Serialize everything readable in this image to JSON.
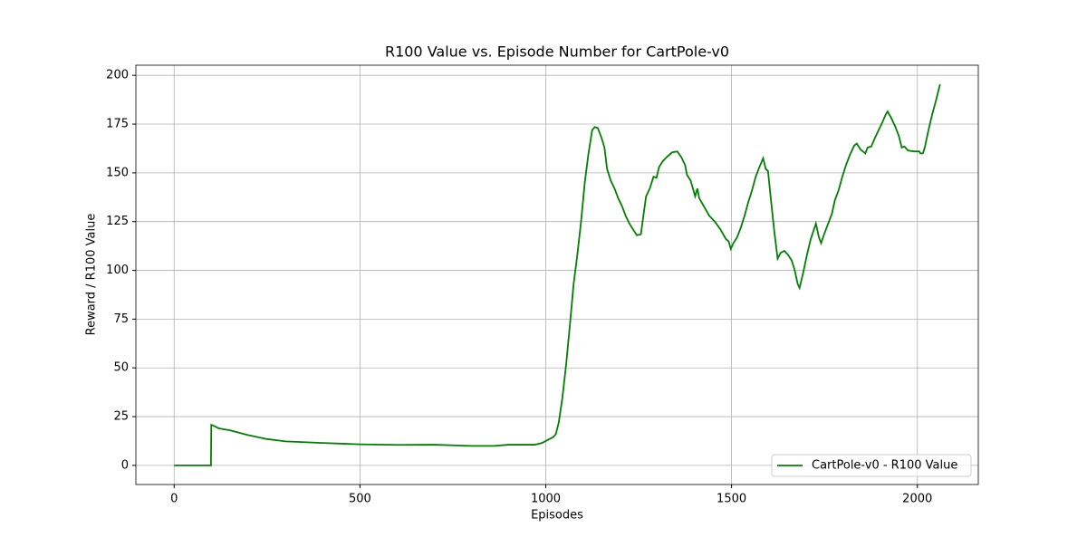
{
  "chart_data": {
    "type": "line",
    "title": "R100 Value vs. Episode Number for CartPole-v0",
    "x_label": "Episodes",
    "y_label": "Reward / R100 Value",
    "x": [
      0,
      99,
      100,
      110,
      120,
      150,
      200,
      250,
      300,
      400,
      500,
      600,
      700,
      800,
      860,
      900,
      970,
      990,
      1000,
      1020,
      1027,
      1035,
      1045,
      1055,
      1065,
      1075,
      1085,
      1095,
      1105,
      1115,
      1125,
      1132,
      1140,
      1150,
      1158,
      1165,
      1175,
      1185,
      1195,
      1205,
      1215,
      1225,
      1235,
      1245,
      1256,
      1262,
      1270,
      1280,
      1290,
      1298,
      1305,
      1315,
      1325,
      1340,
      1354,
      1365,
      1375,
      1380,
      1390,
      1402,
      1408,
      1413,
      1425,
      1440,
      1455,
      1470,
      1485,
      1492,
      1498,
      1505,
      1515,
      1525,
      1535,
      1545,
      1555,
      1565,
      1575,
      1585,
      1592,
      1598,
      1605,
      1615,
      1624,
      1632,
      1642,
      1652,
      1662,
      1670,
      1678,
      1683,
      1693,
      1703,
      1713,
      1727,
      1735,
      1741,
      1750,
      1760,
      1770,
      1778,
      1788,
      1798,
      1808,
      1818,
      1830,
      1837,
      1847,
      1860,
      1866,
      1876,
      1886,
      1896,
      1906,
      1915,
      1920,
      1930,
      1940,
      1950,
      1958,
      1965,
      1975,
      1990,
      2005,
      2008,
      2015,
      2020,
      2030,
      2040,
      2050,
      2061
    ],
    "series": [
      {
        "name": "CartPole-v0 - R100 Value",
        "color": "#008000",
        "values": [
          0,
          0,
          20.8,
          20,
          19,
          18,
          15.5,
          13.5,
          12.3,
          11.5,
          10.8,
          10.5,
          10.6,
          10,
          10,
          10.6,
          10.6,
          11.5,
          12.5,
          14.5,
          16,
          22,
          35,
          52,
          72,
          93,
          108,
          125,
          145,
          160,
          172,
          173.5,
          173,
          168,
          163,
          152,
          146,
          142,
          137,
          133,
          128,
          124,
          121,
          118,
          118.5,
          127,
          138,
          142,
          148,
          147.5,
          153,
          156,
          158,
          160.5,
          161,
          158,
          154,
          149,
          146,
          138,
          142,
          137,
          133,
          128,
          125,
          121,
          116,
          115,
          111,
          114,
          117,
          122,
          128,
          135,
          141,
          148,
          153,
          157.5,
          152,
          151,
          138,
          120,
          106,
          109,
          110,
          108,
          105,
          100,
          93,
          91,
          99,
          108,
          116,
          124,
          117,
          114,
          119,
          124,
          129,
          136,
          141,
          148,
          154,
          159,
          164,
          165,
          162,
          160,
          163,
          163.5,
          168,
          172,
          176,
          180,
          181.5,
          178,
          174,
          169,
          163,
          163.5,
          161.5,
          161,
          161,
          160,
          160,
          163,
          172,
          180,
          187,
          195.4
        ]
      }
    ],
    "xlim": [
      -103,
      2164
    ],
    "ylim": [
      -9.8,
      205.2
    ],
    "xticks": [
      0,
      500,
      1000,
      1500,
      2000
    ],
    "yticks": [
      0,
      25,
      50,
      75,
      100,
      125,
      150,
      175,
      200
    ],
    "grid": true,
    "legend": "lower right"
  }
}
